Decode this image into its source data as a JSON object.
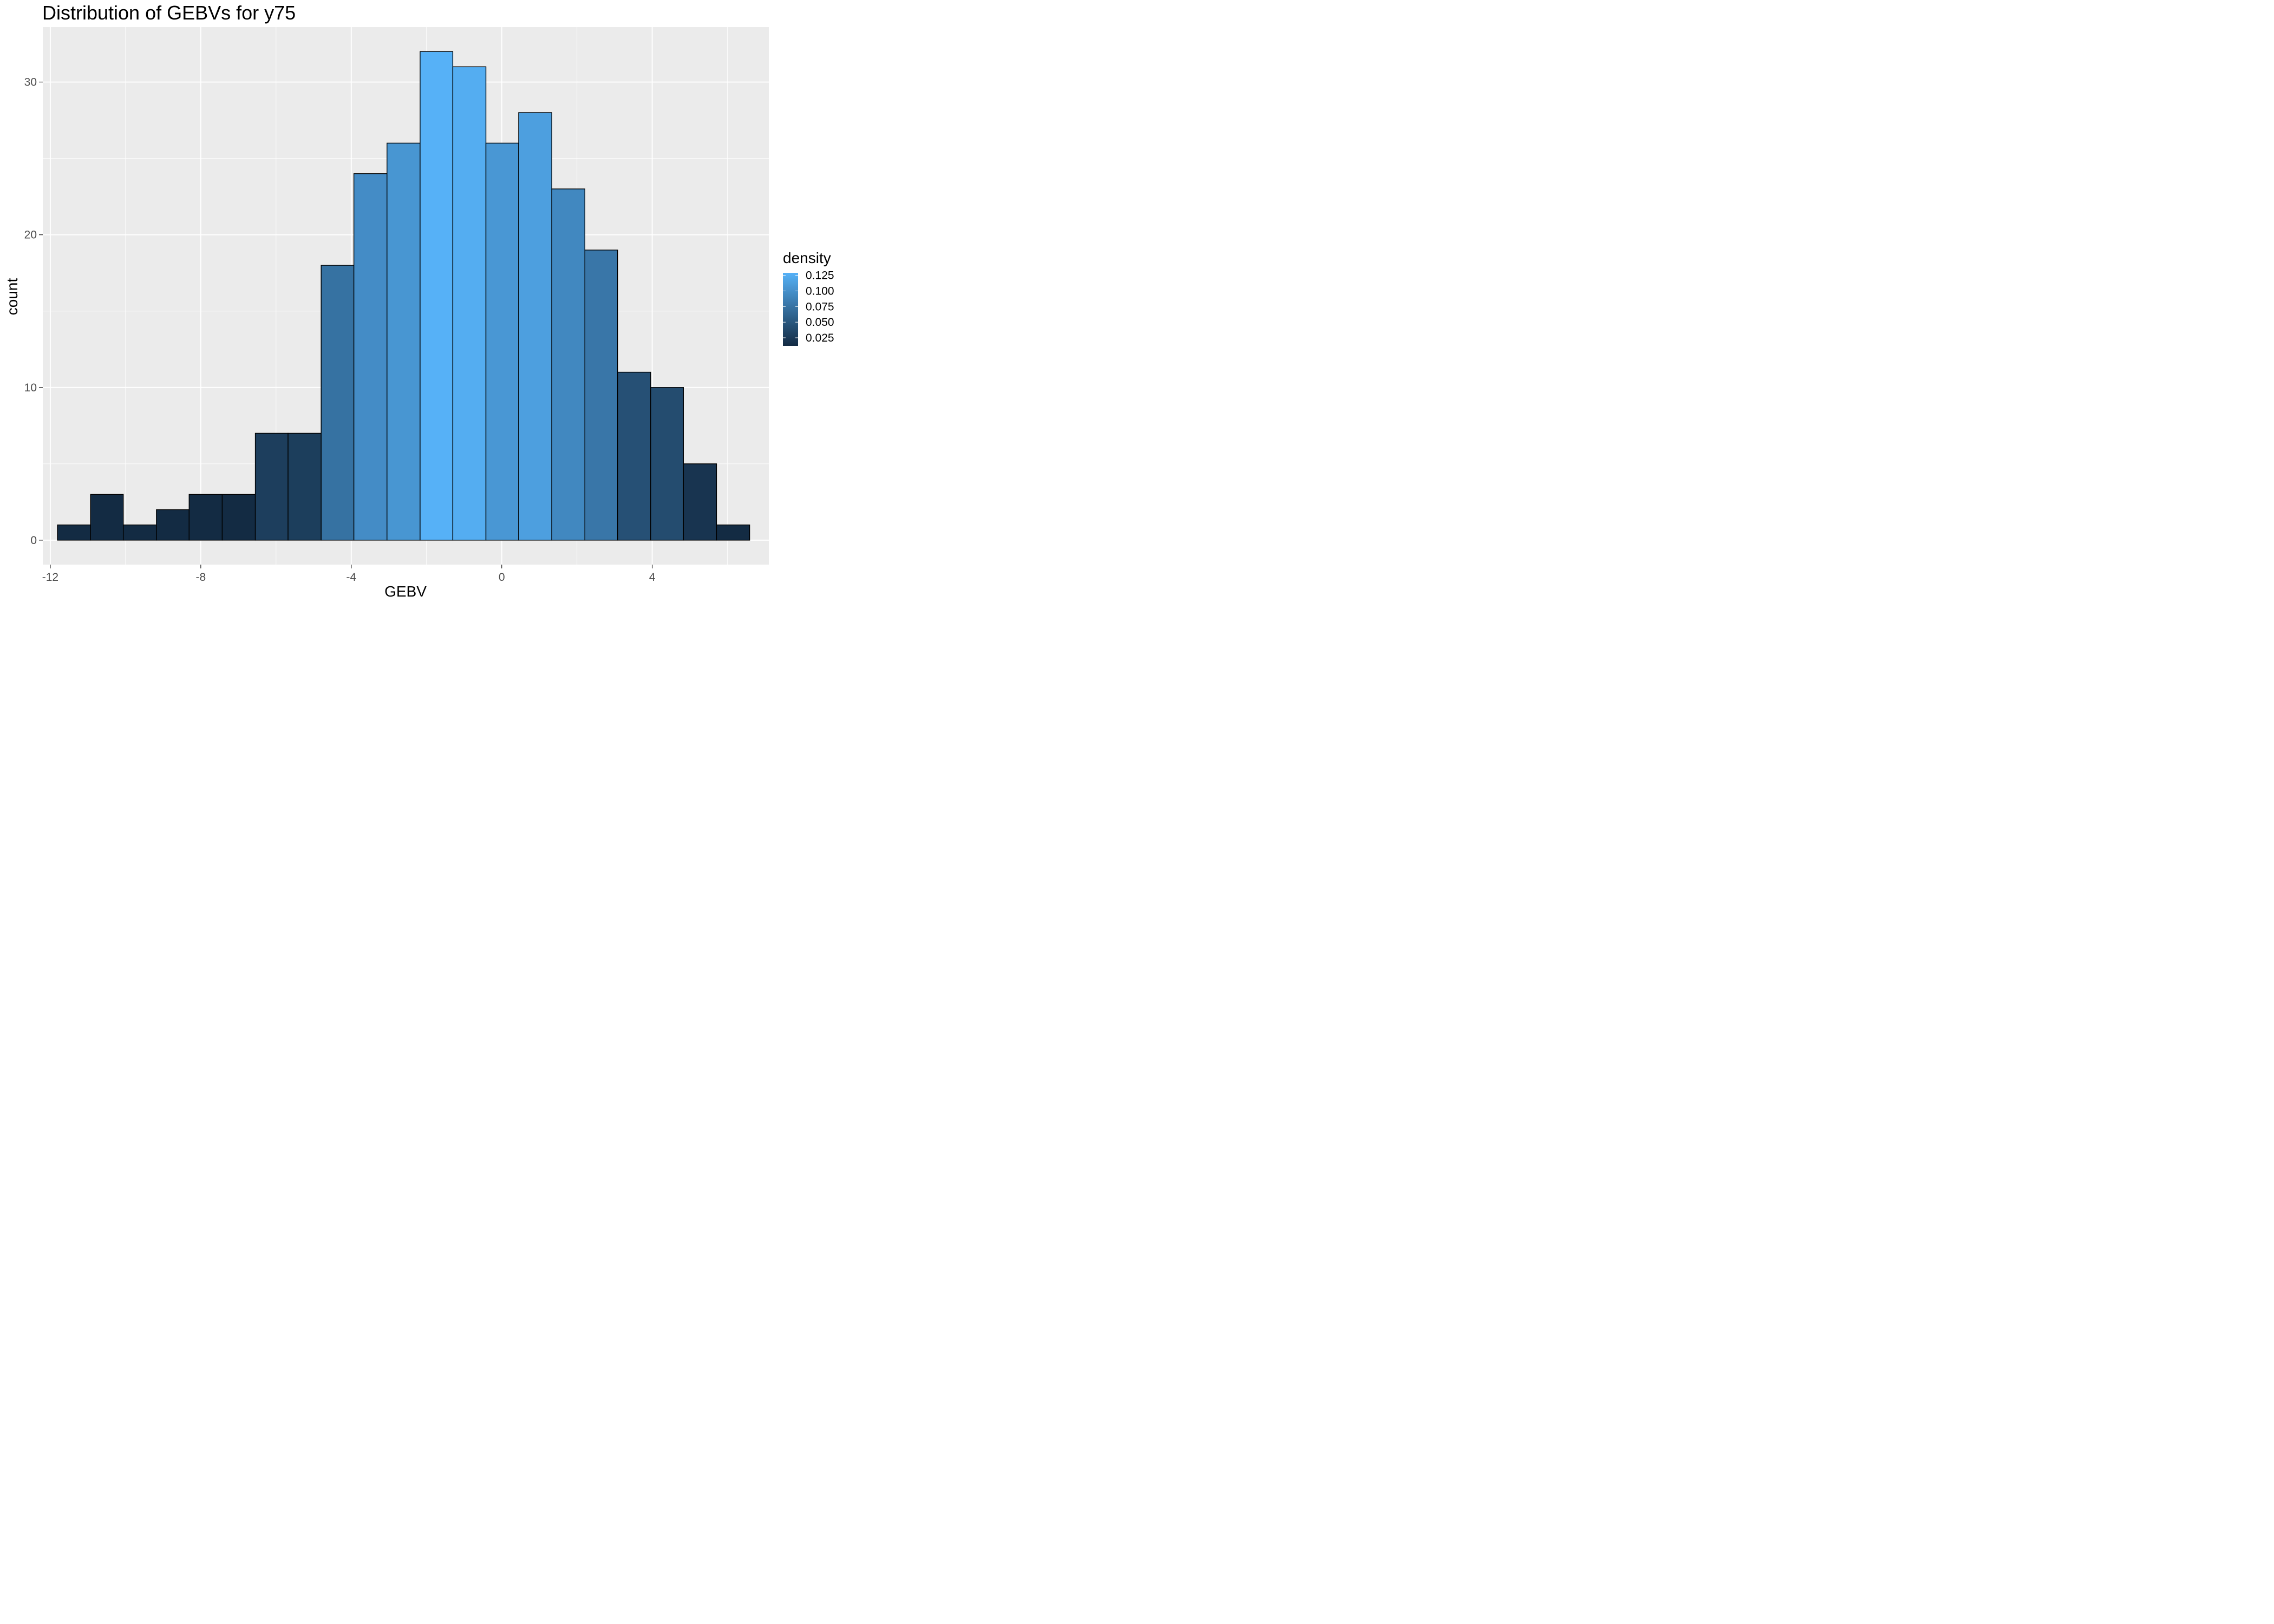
{
  "chart_data": {
    "type": "bar",
    "subtype": "histogram",
    "title": "Distribution of GEBVs for y75",
    "xlabel": "GEBV",
    "ylabel": "count",
    "xlim": [
      -12.2,
      7.1
    ],
    "ylim": [
      -1.6,
      33.6
    ],
    "x_ticks": [
      -12,
      -8,
      -4,
      0,
      4
    ],
    "x_tick_labels": [
      "-12",
      "-8",
      "-4",
      "0",
      "4"
    ],
    "y_ticks": [
      0,
      10,
      20,
      30
    ],
    "y_tick_labels": [
      "0",
      "10",
      "20",
      "30"
    ],
    "bins": [
      {
        "x0": -11.81,
        "x1": -10.93,
        "count": 1
      },
      {
        "x0": -10.93,
        "x1": -10.06,
        "count": 3
      },
      {
        "x0": -10.06,
        "x1": -9.18,
        "count": 1
      },
      {
        "x0": -9.18,
        "x1": -8.31,
        "count": 2
      },
      {
        "x0": -8.31,
        "x1": -7.43,
        "count": 3
      },
      {
        "x0": -7.43,
        "x1": -6.55,
        "count": 3
      },
      {
        "x0": -6.55,
        "x1": -5.68,
        "count": 7
      },
      {
        "x0": -5.68,
        "x1": -4.8,
        "count": 7
      },
      {
        "x0": -4.8,
        "x1": -3.93,
        "count": 18
      },
      {
        "x0": -3.93,
        "x1": -3.05,
        "count": 24
      },
      {
        "x0": -3.05,
        "x1": -2.17,
        "count": 26
      },
      {
        "x0": -2.17,
        "x1": -1.3,
        "count": 32
      },
      {
        "x0": -1.3,
        "x1": -0.42,
        "count": 31
      },
      {
        "x0": -0.42,
        "x1": 0.45,
        "count": 26
      },
      {
        "x0": 0.45,
        "x1": 1.33,
        "count": 28
      },
      {
        "x0": 1.33,
        "x1": 2.21,
        "count": 23
      },
      {
        "x0": 2.21,
        "x1": 3.08,
        "count": 19
      },
      {
        "x0": 3.08,
        "x1": 3.96,
        "count": 11
      },
      {
        "x0": 3.96,
        "x1": 4.83,
        "count": 10
      },
      {
        "x0": 4.83,
        "x1": 5.71,
        "count": 5
      },
      {
        "x0": 5.71,
        "x1": 6.59,
        "count": 1
      }
    ],
    "fill_variable": "density",
    "legend": {
      "title": "density",
      "position": "right",
      "labels": [
        "0.125",
        "0.100",
        "0.075",
        "0.050",
        "0.025"
      ],
      "values": [
        0.125,
        0.1,
        0.075,
        0.05,
        0.025
      ],
      "range": [
        0.012,
        0.129
      ],
      "low_color": "#132B43",
      "high_color": "#56B1F7"
    },
    "grid": true,
    "panel_background": "#EBEBEB",
    "grid_color": "#ffffff",
    "bar_outline": "#000000"
  }
}
